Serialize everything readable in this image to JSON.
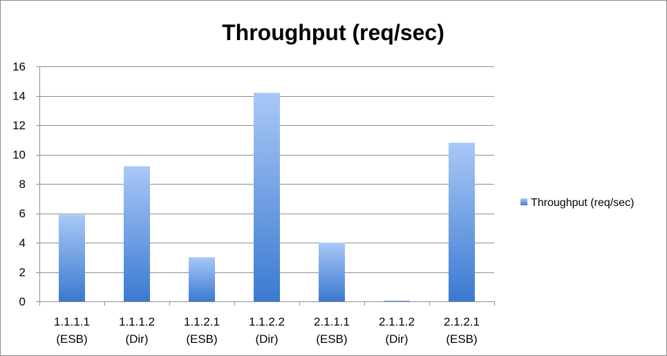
{
  "chart_data": {
    "type": "bar",
    "title": "Throughput (req/sec)",
    "xlabel": "",
    "ylabel": "",
    "categories": [
      [
        "1.1.1.1",
        "(ESB)"
      ],
      [
        "1.1.1.2",
        "(Dir)"
      ],
      [
        "1.1.2.1",
        "(ESB)"
      ],
      [
        "1.1.2.2",
        "(Dir)"
      ],
      [
        "2.1.1.1",
        "(ESB)"
      ],
      [
        "2.1.1.2",
        "(Dir)"
      ],
      [
        "2.1.2.1",
        "(ESB)"
      ]
    ],
    "series": [
      {
        "name": "Throughput (req/sec)",
        "values": [
          5.9,
          9.2,
          3.0,
          14.2,
          4.0,
          0.05,
          10.8
        ]
      }
    ],
    "ylim": [
      0,
      16
    ],
    "yticks": [
      0,
      2,
      4,
      6,
      8,
      10,
      12,
      14,
      16
    ],
    "grid": true,
    "legend": "right",
    "colors": {
      "bar_top": "#a9c8f7",
      "bar_bottom": "#3a7ad0",
      "grid": "#8c8c8c",
      "axis": "#8c8c8c"
    }
  }
}
